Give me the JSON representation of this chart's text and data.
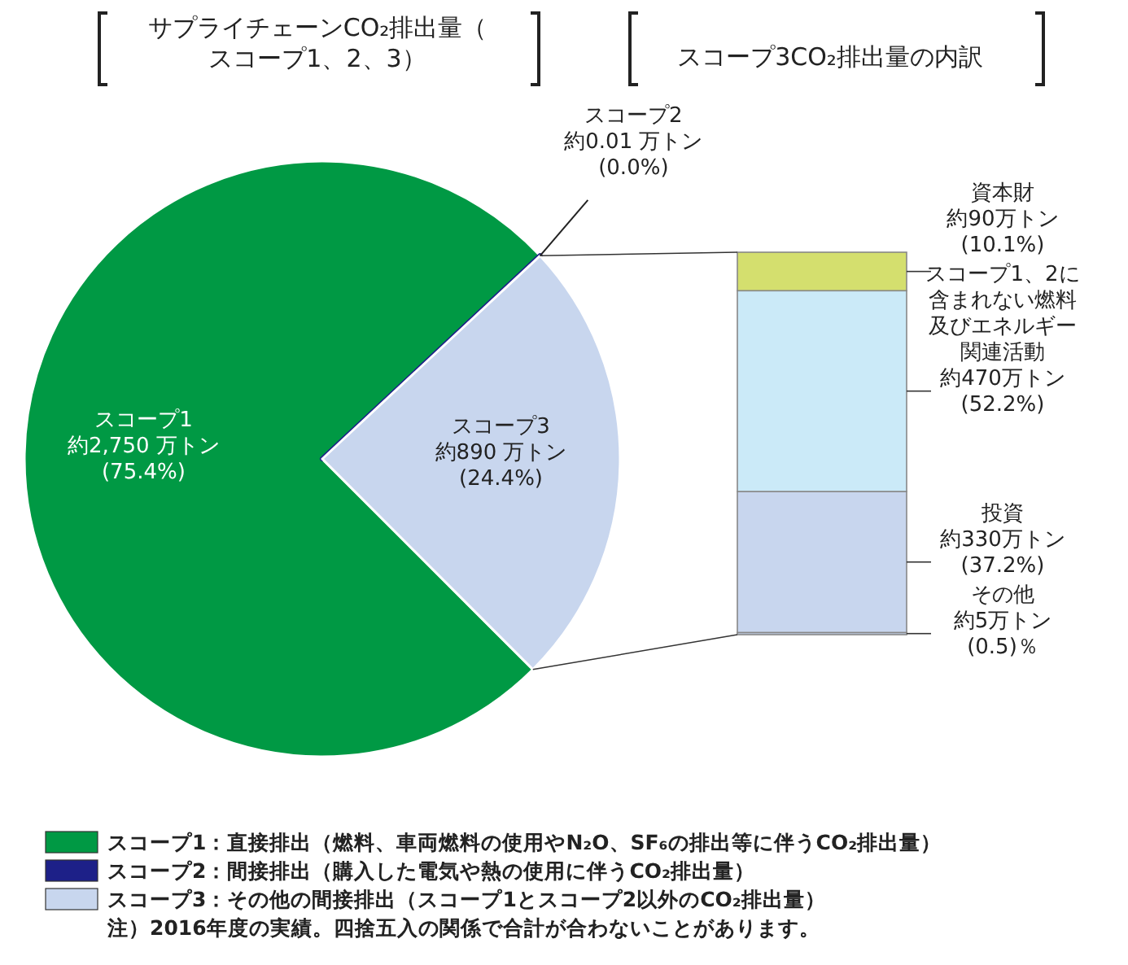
{
  "chart_data": [
    {
      "type": "pie",
      "title": "サプライチェーンCO₂排出量（スコープ1、2、3）",
      "categories": [
        "スコープ1：直接排出（燃料、車両燃料の使用やN₂O、SF₆の排出等に伴うCO₂排出量）",
        "スコープ2：間接排出（購入した電気や熱の使用に伴うCO₂排出量）",
        "スコープ3：その他の間接排出（スコープ1とスコープ2以外のCO₂排出量）"
      ],
      "values": [
        2750,
        0.01,
        890
      ],
      "colors": [
        "#009944",
        "#1d2088",
        "#c8d6ee"
      ],
      "value_labels": [
        "スコープ1\n約2,750 万トン\n(75.4%)",
        "スコープ2\n約0.01 万トン\n(0.0%)",
        "スコープ3\n約890 万トン\n(24.4%)"
      ],
      "legend": "bottom",
      "annotations": [
        "注）2016年度の実績。四捨五入の関係で合計が合わないことがあります。"
      ]
    },
    {
      "type": "bar",
      "stacked": true,
      "title": "スコープ3CO₂排出量の内訳",
      "categories": [
        null
      ],
      "series": [
        {
          "name": "その他",
          "color": "#c8d6ee",
          "values": [
            5
          ],
          "value_labels": [
            "約5万トン\n(0.5)％"
          ]
        },
        {
          "name": "投資",
          "color": "#c8d6ee",
          "values": [
            330
          ],
          "value_labels": [
            "約330万トン\n(37.2%)"
          ]
        },
        {
          "name": "スコープ1、2に含まれない燃料及びエネルギー関連活動",
          "color": "#cbeaf8",
          "values": [
            470
          ],
          "value_labels": [
            "約470万トン\n(52.2%)"
          ]
        },
        {
          "name": "資本財",
          "color": "#d4df6e",
          "values": [
            90
          ],
          "value_labels": [
            "約90万トン\n(10.1%)"
          ]
        }
      ]
    }
  ]
}
